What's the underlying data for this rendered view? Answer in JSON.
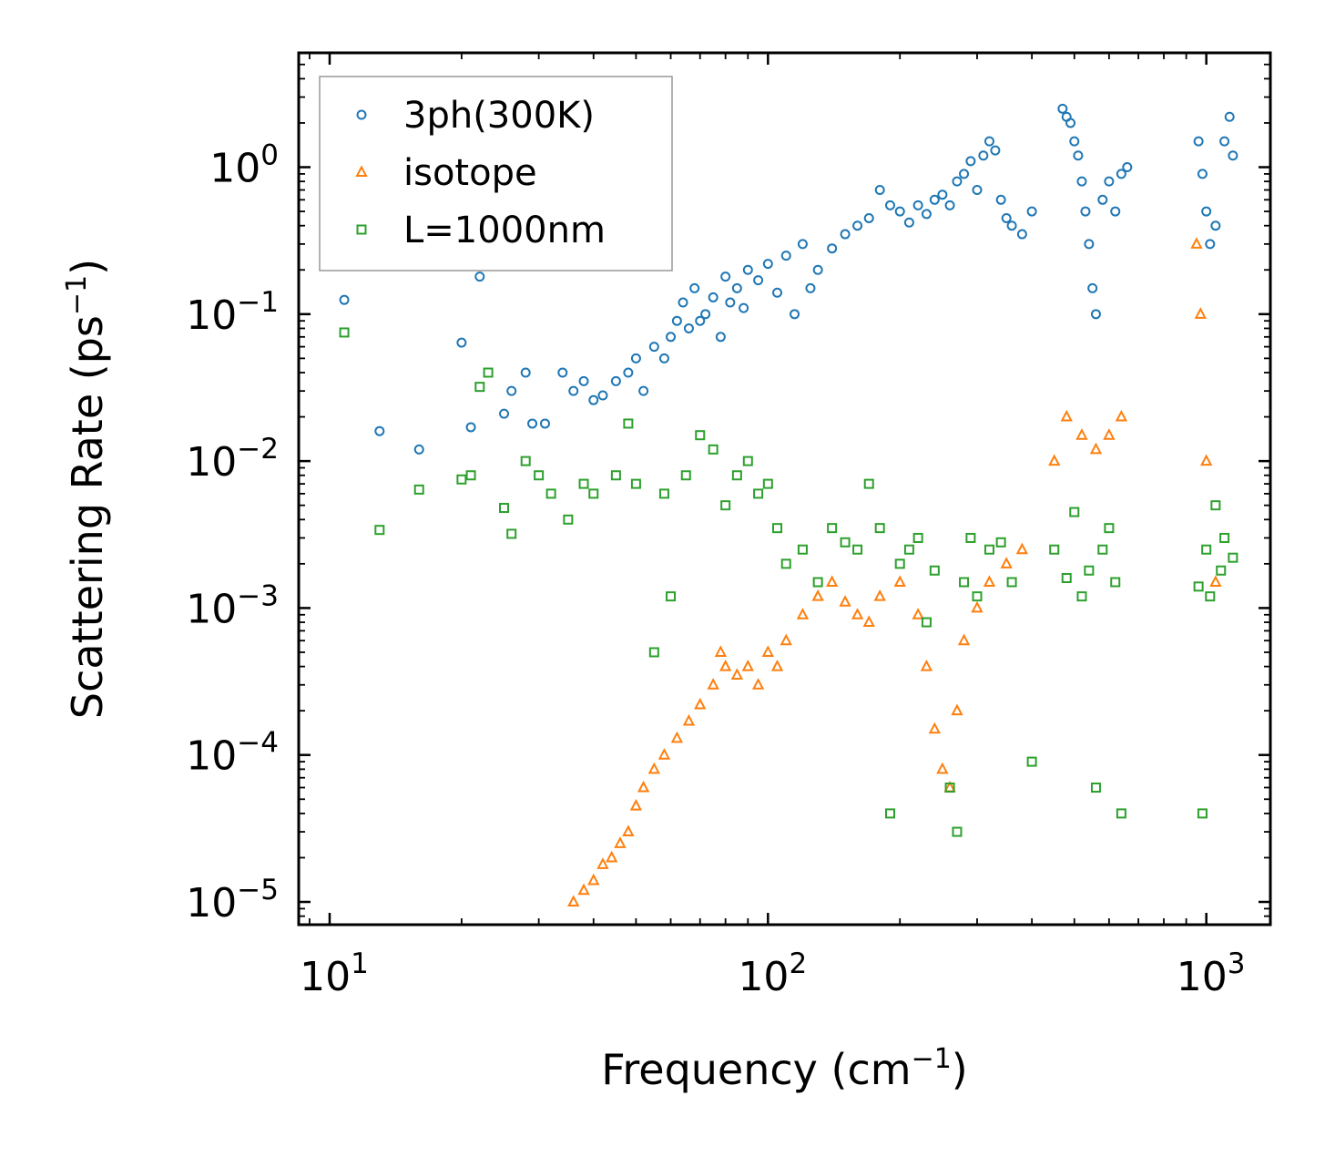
{
  "chart_data": {
    "type": "scatter",
    "xscale": "log",
    "yscale": "log",
    "xlim": [
      8.5,
      1400
    ],
    "ylim": [
      7e-06,
      6
    ],
    "xlabel": "Frequency (cm",
    "xlabel_sup": "−1",
    "xlabel_end": ")",
    "ylabel": "Scattering Rate (ps",
    "ylabel_sup": "−1",
    "ylabel_end": ")",
    "legend_position": "top-left",
    "xticks": [
      {
        "value": 10,
        "base": "10",
        "exp": "1"
      },
      {
        "value": 100,
        "base": "10",
        "exp": "2"
      },
      {
        "value": 1000,
        "base": "10",
        "exp": "3"
      }
    ],
    "yticks": [
      {
        "value": 1,
        "base": "10",
        "exp": "0"
      },
      {
        "value": 0.1,
        "base": "10",
        "exp": "−1"
      },
      {
        "value": 0.01,
        "base": "10",
        "exp": "−2"
      },
      {
        "value": 0.001,
        "base": "10",
        "exp": "−3"
      },
      {
        "value": 0.0001,
        "base": "10",
        "exp": "−4"
      },
      {
        "value": 1e-05,
        "base": "10",
        "exp": "−5"
      }
    ],
    "series": [
      {
        "name": "3ph(300K)",
        "marker": "circle",
        "color": "#1f77b4",
        "points": [
          [
            10.8,
            0.125
          ],
          [
            13,
            0.016
          ],
          [
            16,
            0.012
          ],
          [
            20,
            0.064
          ],
          [
            21,
            0.017
          ],
          [
            22,
            0.18
          ],
          [
            25,
            0.021
          ],
          [
            26,
            0.03
          ],
          [
            28,
            0.04
          ],
          [
            29,
            0.018
          ],
          [
            31,
            0.018
          ],
          [
            34,
            0.04
          ],
          [
            36,
            0.03
          ],
          [
            38,
            0.035
          ],
          [
            40,
            0.026
          ],
          [
            42,
            0.028
          ],
          [
            45,
            0.035
          ],
          [
            48,
            0.04
          ],
          [
            50,
            0.05
          ],
          [
            52,
            0.03
          ],
          [
            55,
            0.06
          ],
          [
            58,
            0.05
          ],
          [
            60,
            0.07
          ],
          [
            62,
            0.09
          ],
          [
            64,
            0.12
          ],
          [
            66,
            0.08
          ],
          [
            68,
            0.15
          ],
          [
            70,
            0.09
          ],
          [
            72,
            0.1
          ],
          [
            75,
            0.13
          ],
          [
            78,
            0.07
          ],
          [
            80,
            0.18
          ],
          [
            82,
            0.12
          ],
          [
            85,
            0.15
          ],
          [
            88,
            0.11
          ],
          [
            90,
            0.2
          ],
          [
            95,
            0.17
          ],
          [
            100,
            0.22
          ],
          [
            105,
            0.14
          ],
          [
            110,
            0.25
          ],
          [
            115,
            0.1
          ],
          [
            120,
            0.3
          ],
          [
            125,
            0.15
          ],
          [
            130,
            0.2
          ],
          [
            140,
            0.28
          ],
          [
            150,
            0.35
          ],
          [
            160,
            0.4
          ],
          [
            170,
            0.45
          ],
          [
            180,
            0.7
          ],
          [
            190,
            0.55
          ],
          [
            200,
            0.5
          ],
          [
            210,
            0.42
          ],
          [
            220,
            0.55
          ],
          [
            230,
            0.48
          ],
          [
            240,
            0.6
          ],
          [
            250,
            0.65
          ],
          [
            260,
            0.55
          ],
          [
            270,
            0.8
          ],
          [
            280,
            0.9
          ],
          [
            290,
            1.1
          ],
          [
            300,
            0.7
          ],
          [
            310,
            1.2
          ],
          [
            320,
            1.5
          ],
          [
            330,
            1.3
          ],
          [
            340,
            0.6
          ],
          [
            350,
            0.45
          ],
          [
            360,
            0.4
          ],
          [
            380,
            0.35
          ],
          [
            400,
            0.5
          ],
          [
            470,
            2.5
          ],
          [
            480,
            2.2
          ],
          [
            490,
            2.0
          ],
          [
            500,
            1.5
          ],
          [
            510,
            1.2
          ],
          [
            520,
            0.8
          ],
          [
            530,
            0.5
          ],
          [
            540,
            0.3
          ],
          [
            550,
            0.15
          ],
          [
            560,
            0.1
          ],
          [
            580,
            0.6
          ],
          [
            600,
            0.8
          ],
          [
            620,
            0.5
          ],
          [
            640,
            0.9
          ],
          [
            660,
            1.0
          ],
          [
            960,
            1.5
          ],
          [
            980,
            0.9
          ],
          [
            1000,
            0.5
          ],
          [
            1020,
            0.3
          ],
          [
            1050,
            0.4
          ],
          [
            1100,
            1.5
          ],
          [
            1130,
            2.2
          ],
          [
            1150,
            1.2
          ]
        ]
      },
      {
        "name": "isotope",
        "marker": "triangle",
        "color": "#ff7f0e",
        "points": [
          [
            36,
            1e-05
          ],
          [
            38,
            1.2e-05
          ],
          [
            40,
            1.4e-05
          ],
          [
            42,
            1.8e-05
          ],
          [
            44,
            2e-05
          ],
          [
            46,
            2.5e-05
          ],
          [
            48,
            3e-05
          ],
          [
            50,
            4.5e-05
          ],
          [
            52,
            6e-05
          ],
          [
            55,
            8e-05
          ],
          [
            58,
            0.0001
          ],
          [
            62,
            0.00013
          ],
          [
            66,
            0.00017
          ],
          [
            70,
            0.00022
          ],
          [
            75,
            0.0003
          ],
          [
            78,
            0.0005
          ],
          [
            80,
            0.0004
          ],
          [
            85,
            0.00035
          ],
          [
            90,
            0.0004
          ],
          [
            95,
            0.0003
          ],
          [
            100,
            0.0005
          ],
          [
            105,
            0.0004
          ],
          [
            110,
            0.0006
          ],
          [
            120,
            0.0009
          ],
          [
            130,
            0.0012
          ],
          [
            140,
            0.0015
          ],
          [
            150,
            0.0011
          ],
          [
            160,
            0.0009
          ],
          [
            170,
            0.0008
          ],
          [
            180,
            0.0012
          ],
          [
            200,
            0.0015
          ],
          [
            220,
            0.0009
          ],
          [
            230,
            0.0004
          ],
          [
            240,
            0.00015
          ],
          [
            250,
            8e-05
          ],
          [
            260,
            6e-05
          ],
          [
            270,
            0.0002
          ],
          [
            280,
            0.0006
          ],
          [
            300,
            0.001
          ],
          [
            320,
            0.0015
          ],
          [
            350,
            0.002
          ],
          [
            380,
            0.0025
          ],
          [
            450,
            0.01
          ],
          [
            480,
            0.02
          ],
          [
            520,
            0.015
          ],
          [
            560,
            0.012
          ],
          [
            600,
            0.015
          ],
          [
            640,
            0.02
          ],
          [
            950,
            0.3
          ],
          [
            970,
            0.1
          ],
          [
            1000,
            0.01
          ],
          [
            1050,
            0.0015
          ]
        ]
      },
      {
        "name": "L=1000nm",
        "marker": "square",
        "color": "#2ca02c",
        "points": [
          [
            10.8,
            0.075
          ],
          [
            13,
            0.0034
          ],
          [
            16,
            0.0064
          ],
          [
            20,
            0.0075
          ],
          [
            21,
            0.008
          ],
          [
            22,
            0.032
          ],
          [
            23,
            0.04
          ],
          [
            25,
            0.0048
          ],
          [
            26,
            0.0032
          ],
          [
            28,
            0.01
          ],
          [
            30,
            0.008
          ],
          [
            32,
            0.006
          ],
          [
            35,
            0.004
          ],
          [
            38,
            0.007
          ],
          [
            40,
            0.006
          ],
          [
            45,
            0.008
          ],
          [
            48,
            0.018
          ],
          [
            50,
            0.007
          ],
          [
            55,
            0.0005
          ],
          [
            58,
            0.006
          ],
          [
            60,
            0.0012
          ],
          [
            65,
            0.008
          ],
          [
            70,
            0.015
          ],
          [
            75,
            0.012
          ],
          [
            80,
            0.005
          ],
          [
            85,
            0.008
          ],
          [
            90,
            0.01
          ],
          [
            95,
            0.006
          ],
          [
            100,
            0.007
          ],
          [
            105,
            0.0035
          ],
          [
            110,
            0.002
          ],
          [
            120,
            0.0025
          ],
          [
            130,
            0.0015
          ],
          [
            140,
            0.0035
          ],
          [
            150,
            0.0028
          ],
          [
            160,
            0.0025
          ],
          [
            170,
            0.007
          ],
          [
            180,
            0.0035
          ],
          [
            190,
            4e-05
          ],
          [
            200,
            0.002
          ],
          [
            210,
            0.0025
          ],
          [
            220,
            0.003
          ],
          [
            230,
            0.0008
          ],
          [
            240,
            0.0018
          ],
          [
            260,
            6e-05
          ],
          [
            270,
            3e-05
          ],
          [
            280,
            0.0015
          ],
          [
            290,
            0.003
          ],
          [
            300,
            0.0012
          ],
          [
            320,
            0.0025
          ],
          [
            340,
            0.0028
          ],
          [
            360,
            0.0015
          ],
          [
            400,
            9e-05
          ],
          [
            450,
            0.0025
          ],
          [
            480,
            0.0016
          ],
          [
            500,
            0.0045
          ],
          [
            520,
            0.0012
          ],
          [
            540,
            0.0018
          ],
          [
            560,
            6e-05
          ],
          [
            580,
            0.0025
          ],
          [
            600,
            0.0035
          ],
          [
            620,
            0.0015
          ],
          [
            640,
            4e-05
          ],
          [
            960,
            0.0014
          ],
          [
            980,
            4e-05
          ],
          [
            1000,
            0.0025
          ],
          [
            1020,
            0.0012
          ],
          [
            1050,
            0.005
          ],
          [
            1080,
            0.0018
          ],
          [
            1100,
            0.003
          ],
          [
            1150,
            0.0022
          ]
        ]
      }
    ]
  }
}
